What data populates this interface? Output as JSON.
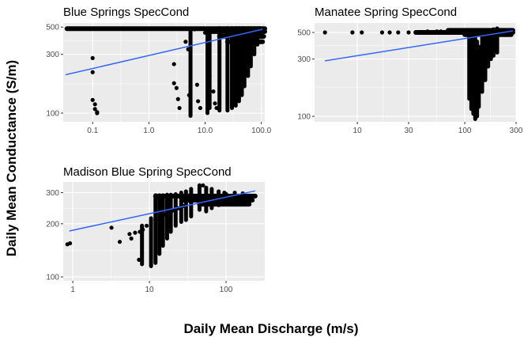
{
  "figure": {
    "xlabel": "Daily Mean Discharge (m/s)",
    "ylabel": "Daily Mean Conductance (S/m)",
    "point_color": "#000000",
    "trend_color": "#3366ff",
    "panel_bg": "#ebebeb",
    "grid_color": "#ffffff"
  },
  "chart_data": [
    {
      "type": "scatter",
      "title": "Blue Springs SpecCond",
      "x_scale": "log10",
      "y_scale": "log10",
      "xlim": [
        0.03,
        115
      ],
      "ylim": [
        85,
        540
      ],
      "x_ticks": [
        0.1,
        1,
        10,
        100
      ],
      "x_tick_labels": [
        "0.1",
        "1.0",
        "10.0",
        "100.0"
      ],
      "y_ticks": [
        100,
        300,
        500
      ],
      "y_tick_labels": [
        "100",
        "300",
        "500"
      ],
      "trend_line": {
        "x": [
          0.033,
          105
        ],
        "y": [
          205,
          480
        ]
      },
      "points": [
        [
          0.1,
          280
        ],
        [
          0.1,
          215
        ],
        [
          0.1,
          128
        ],
        [
          0.11,
          118
        ],
        [
          0.11,
          108
        ],
        [
          0.12,
          102
        ],
        [
          0.12,
          100
        ],
        [
          2.8,
          250
        ],
        [
          2.8,
          175
        ],
        [
          3.1,
          160
        ],
        [
          3.3,
          130
        ],
        [
          3.5,
          110
        ],
        [
          4.5,
          380
        ],
        [
          5.0,
          330
        ],
        [
          5.2,
          140
        ],
        [
          5.5,
          110
        ],
        [
          6.5,
          480
        ],
        [
          7.2,
          170
        ],
        [
          7.5,
          125
        ],
        [
          8.2,
          110
        ],
        [
          10,
          450
        ],
        [
          11,
          360
        ],
        [
          12,
          200
        ],
        [
          14,
          150
        ],
        [
          15,
          120
        ],
        [
          16,
          110
        ]
      ],
      "bands": [
        {
          "x": [
            0.035,
            115
          ],
          "y": 485
        },
        {
          "x": [
            11,
            115
          ],
          "y": 460
        },
        {
          "x": [
            18,
            110
          ],
          "y": 420
        },
        {
          "x": [
            25,
            105
          ],
          "y": 380
        }
      ],
      "columns": [
        {
          "x": 5.5,
          "y": [
            95,
            480
          ]
        },
        {
          "x": 11,
          "y": [
            100,
            480
          ]
        },
        {
          "x": 12,
          "y": [
            110,
            470
          ]
        },
        {
          "x": 18,
          "y": [
            105,
            490
          ]
        },
        {
          "x": 25,
          "y": [
            105,
            490
          ]
        },
        {
          "x": 30,
          "y": [
            110,
            490
          ]
        },
        {
          "x": 35,
          "y": [
            115,
            490
          ]
        },
        {
          "x": 40,
          "y": [
            125,
            490
          ]
        },
        {
          "x": 45,
          "y": [
            140,
            490
          ]
        },
        {
          "x": 50,
          "y": [
            165,
            490
          ]
        },
        {
          "x": 58,
          "y": [
            200,
            490
          ]
        },
        {
          "x": 65,
          "y": [
            240,
            490
          ]
        },
        {
          "x": 75,
          "y": [
            300,
            490
          ]
        },
        {
          "x": 85,
          "y": [
            360,
            490
          ]
        },
        {
          "x": 95,
          "y": [
            420,
            490
          ]
        }
      ]
    },
    {
      "type": "scatter",
      "title": "Manatee Spring SpecCond",
      "x_scale": "log10",
      "y_scale": "log10",
      "xlim": [
        4,
        300
      ],
      "ylim": [
        90,
        600
      ],
      "x_ticks": [
        10,
        30,
        100,
        300
      ],
      "x_tick_labels": [
        "10",
        "30",
        "100",
        "300"
      ],
      "y_ticks": [
        100,
        300,
        500
      ],
      "y_tick_labels": [
        "100",
        "300",
        "500"
      ],
      "trend_line": {
        "x": [
          5,
          280
        ],
        "y": [
          290,
          515
        ]
      },
      "points": [
        [
          5,
          500
        ],
        [
          9,
          500
        ],
        [
          11,
          500
        ],
        [
          17,
          500
        ],
        [
          20,
          500
        ],
        [
          24,
          500
        ],
        [
          30,
          500
        ],
        [
          45,
          510
        ],
        [
          55,
          510
        ],
        [
          60,
          510
        ]
      ],
      "bands": [
        {
          "x": [
            35,
            280
          ],
          "y": 500
        },
        {
          "x": [
            70,
            280
          ],
          "y": 520
        },
        {
          "x": [
            100,
            270
          ],
          "y": 480
        }
      ],
      "columns": [
        {
          "x": 110,
          "y": [
            140,
            470
          ]
        },
        {
          "x": 115,
          "y": [
            115,
            500
          ]
        },
        {
          "x": 120,
          "y": [
            105,
            480
          ]
        },
        {
          "x": 125,
          "y": [
            95,
            470
          ]
        },
        {
          "x": 130,
          "y": [
            100,
            420
          ]
        },
        {
          "x": 135,
          "y": [
            120,
            380
          ]
        },
        {
          "x": 145,
          "y": [
            160,
            480
          ]
        },
        {
          "x": 155,
          "y": [
            200,
            500
          ]
        },
        {
          "x": 165,
          "y": [
            260,
            510
          ]
        },
        {
          "x": 175,
          "y": [
            300,
            520
          ]
        },
        {
          "x": 185,
          "y": [
            320,
            530
          ]
        },
        {
          "x": 200,
          "y": [
            340,
            540
          ]
        }
      ]
    },
    {
      "type": "scatter",
      "title": "Madison Blue Spring SpecCond",
      "x_scale": "log10",
      "y_scale": "log10",
      "xlim": [
        0.75,
        320
      ],
      "ylim": [
        95,
        345
      ],
      "x_ticks": [
        1,
        10,
        100
      ],
      "x_tick_labels": [
        "1",
        "10",
        "100"
      ],
      "y_ticks": [
        100,
        200,
        300
      ],
      "y_tick_labels": [
        "100",
        "200",
        "300"
      ],
      "trend_line": {
        "x": [
          0.9,
          240
        ],
        "y": [
          182,
          307
        ]
      },
      "points": [
        [
          0.85,
          153
        ],
        [
          0.92,
          155
        ],
        [
          3.2,
          190
        ],
        [
          4.1,
          158
        ],
        [
          5.5,
          175
        ],
        [
          5.8,
          165
        ],
        [
          6.5,
          178
        ],
        [
          7.5,
          180
        ],
        [
          7.3,
          125
        ],
        [
          8.2,
          185
        ],
        [
          9.2,
          195
        ],
        [
          10.5,
          200
        ],
        [
          12,
          210
        ],
        [
          14,
          220
        ],
        [
          16,
          225
        ],
        [
          18,
          232
        ],
        [
          20,
          238
        ],
        [
          24,
          245
        ],
        [
          28,
          252
        ],
        [
          35,
          262
        ],
        [
          45,
          272
        ],
        [
          60,
          280
        ],
        [
          80,
          290
        ],
        [
          100,
          295
        ],
        [
          130,
          300
        ],
        [
          165,
          297
        ],
        [
          220,
          285
        ],
        [
          50,
          330
        ]
      ],
      "bands": [
        {
          "x": [
            12,
            240
          ],
          "y": 287
        },
        {
          "x": [
            28,
            220
          ],
          "y": 272
        },
        {
          "x": [
            45,
            200
          ],
          "y": 258
        }
      ],
      "columns": [
        {
          "x": 8,
          "y": [
            118,
            195
          ]
        },
        {
          "x": 10.5,
          "y": [
            115,
            215
          ]
        },
        {
          "x": 12,
          "y": [
            120,
            290
          ]
        },
        {
          "x": 13.5,
          "y": [
            135,
            290
          ]
        },
        {
          "x": 15,
          "y": [
            150,
            290
          ]
        },
        {
          "x": 17,
          "y": [
            165,
            292
          ]
        },
        {
          "x": 19,
          "y": [
            180,
            292
          ]
        },
        {
          "x": 22,
          "y": [
            195,
            294
          ]
        },
        {
          "x": 26,
          "y": [
            205,
            300
          ]
        },
        {
          "x": 30,
          "y": [
            210,
            305
          ]
        },
        {
          "x": 35,
          "y": [
            220,
            315
          ]
        },
        {
          "x": 45,
          "y": [
            240,
            330
          ]
        },
        {
          "x": 55,
          "y": [
            235,
            320
          ]
        },
        {
          "x": 65,
          "y": [
            245,
            315
          ]
        },
        {
          "x": 80,
          "y": [
            255,
            305
          ]
        },
        {
          "x": 95,
          "y": [
            262,
            300
          ]
        }
      ]
    }
  ]
}
